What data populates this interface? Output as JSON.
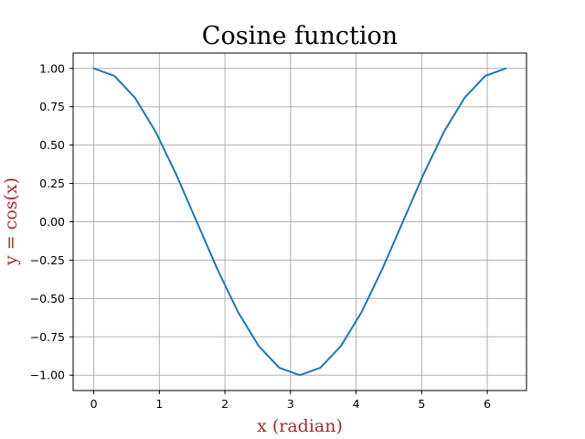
{
  "chart_data": {
    "type": "line",
    "title": "Cosine function",
    "xlabel": "x (radian)",
    "ylabel": "y = cos(x)",
    "label_color": "#a52a2a",
    "line_color": "#1f77b4",
    "grid": true,
    "xlim": [
      -0.3142,
      6.5974
    ],
    "ylim": [
      -1.1,
      1.1
    ],
    "x_ticks": [
      0,
      1,
      2,
      3,
      4,
      5,
      6
    ],
    "x_tick_labels": [
      "0",
      "1",
      "2",
      "3",
      "4",
      "5",
      "6"
    ],
    "y_ticks": [
      1.0,
      0.75,
      0.5,
      0.25,
      0.0,
      -0.25,
      -0.5,
      -0.75,
      -1.0
    ],
    "y_tick_labels": [
      "1.00",
      "0.75",
      "0.50",
      "0.25",
      "0.00",
      "−0.25",
      "−0.50",
      "−0.75",
      "−1.00"
    ],
    "series": [
      {
        "x": [
          0.0,
          0.3142,
          0.6283,
          0.9425,
          1.2566,
          1.5708,
          1.885,
          2.1991,
          2.5133,
          2.8274,
          3.1416,
          3.4558,
          3.7699,
          4.0841,
          4.3982,
          4.7124,
          5.0265,
          5.3407,
          5.6549,
          5.969,
          6.2832
        ],
        "y": [
          1.0,
          0.951,
          0.809,
          0.588,
          0.309,
          0.0,
          -0.309,
          -0.588,
          -0.809,
          -0.951,
          -1.0,
          -0.951,
          -0.809,
          -0.588,
          -0.309,
          0.0,
          0.309,
          0.588,
          0.809,
          0.951,
          1.0
        ]
      }
    ]
  }
}
